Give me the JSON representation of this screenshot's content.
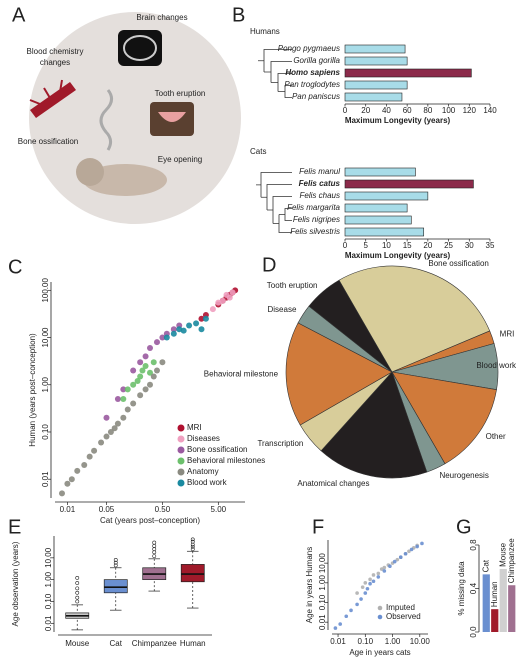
{
  "panels": [
    "A",
    "B",
    "C",
    "D",
    "E",
    "F",
    "G"
  ],
  "panel_a": {
    "brain": "Brain changes",
    "blood": [
      "Blood chemistry",
      "changes"
    ],
    "tooth": "Tooth eruption",
    "bone": "Bone ossification",
    "eye": "Eye opening"
  },
  "chart_data": [
    {
      "type": "bar",
      "orientation": "horizontal",
      "title": "Humans",
      "xlabel": "Maximum Longevity (years)",
      "categories": [
        "Pongo pygmaeus",
        "Gorilla gorilla",
        "Homo sapiens",
        "Pan troglodytes",
        "Pan paniscus"
      ],
      "values": [
        58,
        60,
        122,
        60,
        55
      ],
      "color": "#a8dce8",
      "highlight_index": 2,
      "highlight_color": "#8b2a4a",
      "xlim": [
        0,
        140
      ],
      "xticks": [
        0,
        20,
        40,
        60,
        80,
        100,
        120,
        140
      ]
    },
    {
      "type": "bar",
      "orientation": "horizontal",
      "title": "Cats",
      "xlabel": "Maximum Longevity (years)",
      "categories": [
        "Felis manul",
        "Felis catus",
        "Felis chaus",
        "Felis margarita",
        "Felis nigripes",
        "Felis silvestris"
      ],
      "values": [
        17,
        31,
        20,
        15,
        16,
        19
      ],
      "color": "#a8dce8",
      "highlight_index": 1,
      "highlight_color": "#8b2a4a",
      "xlim": [
        0,
        35
      ],
      "xticks": [
        0,
        5,
        10,
        15,
        20,
        25,
        30,
        35
      ]
    },
    {
      "type": "scatter",
      "xlabel": "Cat (years post–conception)",
      "ylabel": "Human (years post–conception)",
      "log_x": true,
      "log_y": true,
      "legend": "lower right",
      "xlim": [
        0.006,
        15
      ],
      "ylim": [
        0.004,
        150
      ],
      "xticks": [
        0.01,
        0.05,
        {
          "value": 0.5,
          "label": "0.50"
        },
        {
          "value": 5,
          "label": "5.00"
        }
      ],
      "yticks": [
        0.01,
        {
          "value": 0.1,
          "label": "0.10"
        },
        {
          "value": 1,
          "label": "1.00"
        },
        {
          "value": 10,
          "label": "10.00"
        },
        {
          "value": 100,
          "label": "100.00"
        }
      ],
      "series": [
        {
          "name": "MRI",
          "color": "#b01030",
          "x": [
            2.5,
            3,
            5,
            6,
            7,
            8,
            9,
            10
          ],
          "y": [
            25,
            30,
            50,
            60,
            70,
            80,
            90,
            100
          ]
        },
        {
          "name": "Diseases",
          "color": "#f0a0c0",
          "x": [
            4,
            5,
            6,
            7,
            8,
            9
          ],
          "y": [
            40,
            55,
            60,
            80,
            70,
            90
          ]
        },
        {
          "name": "Bone ossification",
          "color": "#9a5aa0",
          "x": [
            0.05,
            0.08,
            0.1,
            0.15,
            0.2,
            0.25,
            0.3,
            0.4,
            0.5,
            0.6,
            0.8,
            1
          ],
          "y": [
            0.2,
            0.5,
            0.8,
            2,
            3,
            4,
            6,
            8,
            10,
            12,
            15,
            18
          ]
        },
        {
          "name": "Behavioral milestones",
          "color": "#6cc06c",
          "x": [
            0.1,
            0.12,
            0.15,
            0.18,
            0.2,
            0.22,
            0.25,
            0.3,
            0.35
          ],
          "y": [
            0.5,
            0.8,
            1,
            1.2,
            1.5,
            2,
            2.5,
            1.8,
            3
          ]
        },
        {
          "name": "Anatomy",
          "color": "#8a8a80",
          "x": [
            0.008,
            0.01,
            0.012,
            0.015,
            0.02,
            0.025,
            0.03,
            0.04,
            0.05,
            0.06,
            0.07,
            0.08,
            0.1,
            0.12,
            0.15,
            0.2,
            0.25,
            0.3,
            0.35,
            0.4,
            0.5
          ],
          "y": [
            0.005,
            0.008,
            0.01,
            0.015,
            0.02,
            0.03,
            0.04,
            0.06,
            0.08,
            0.1,
            0.12,
            0.15,
            0.2,
            0.3,
            0.4,
            0.6,
            0.8,
            1,
            1.5,
            2,
            3
          ]
        },
        {
          "name": "Blood work",
          "color": "#1a8aa0",
          "x": [
            0.6,
            0.8,
            1,
            1.2,
            1.5,
            2,
            2.5,
            3
          ],
          "y": [
            10,
            12,
            15,
            14,
            18,
            20,
            15,
            25
          ]
        }
      ]
    },
    {
      "type": "pie",
      "categories": [
        "Bone ossification",
        "MRI",
        "Blood work",
        "Other",
        "Neurogenesis",
        "Anatomical changes",
        "Transcription",
        "Behavioral milestone",
        "Disease",
        "Tooth eruption"
      ],
      "values": [
        27,
        2,
        7,
        14,
        3,
        17,
        5,
        16,
        3,
        6
      ],
      "colors": [
        "#d8cd9a",
        "#d07a3a",
        "#7f9690",
        "#d07a3a",
        "#7f9690",
        "#231f20",
        "#d8cd9a",
        "#d07a3a",
        "#7f9690",
        "#231f20"
      ]
    },
    {
      "type": "box",
      "ylabel": "Age observation (years)",
      "log_y": true,
      "ylim": [
        0.004,
        100
      ],
      "yticks": [
        0.01,
        {
          "value": 0.1,
          "label": "0.10"
        },
        {
          "value": 1,
          "label": "1.00"
        },
        {
          "value": 10,
          "label": "10.00"
        }
      ],
      "categories": [
        "Mouse",
        "Cat",
        "Chimpanzee",
        "Human"
      ],
      "colors": [
        "#c8c8c8",
        "#6a8fd0",
        "#a07090",
        "#a01a2a"
      ],
      "boxes": [
        {
          "whisker_low": 0.005,
          "q1": 0.017,
          "median": 0.022,
          "q3": 0.03,
          "whisker_high": 0.07,
          "outliers": [
            0.1,
            0.15,
            0.25,
            0.4,
            0.7,
            1.2
          ]
        },
        {
          "whisker_low": 0.04,
          "q1": 0.25,
          "median": 0.45,
          "q3": 1,
          "whisker_high": 3.5,
          "outliers": [
            4.5,
            6,
            8
          ]
        },
        {
          "whisker_low": 0.3,
          "q1": 1,
          "median": 1.8,
          "q3": 3.5,
          "whisker_high": 9,
          "outliers": [
            12,
            18,
            25,
            35,
            50
          ]
        },
        {
          "whisker_low": 0.05,
          "q1": 0.8,
          "median": 1.8,
          "q3": 5,
          "whisker_high": 20,
          "outliers": [
            25,
            32,
            40,
            55,
            70
          ]
        }
      ]
    },
    {
      "type": "scatter",
      "xlabel": "Age in years cats",
      "ylabel": "Age in years Humans",
      "log_x": true,
      "log_y": true,
      "legend": "lower right",
      "xlim": [
        0.006,
        20
      ],
      "ylim": [
        0.004,
        150
      ],
      "xticks": [
        0.01,
        {
          "value": 0.1,
          "label": "0.10"
        },
        {
          "value": 1,
          "label": "1.00"
        },
        {
          "value": 10,
          "label": "10.00"
        }
      ],
      "yticks": [
        0.01,
        {
          "value": 0.1,
          "label": "0.10"
        },
        {
          "value": 1,
          "label": "1.00"
        },
        {
          "value": 10,
          "label": "10.00"
        }
      ],
      "series": [
        {
          "name": "Imputed",
          "color": "#b0b0b0",
          "x": [
            0.05,
            0.08,
            0.1,
            0.15,
            0.2,
            0.3,
            0.4,
            0.5,
            0.7,
            1,
            1.5,
            2,
            3,
            4,
            6,
            8
          ],
          "y": [
            0.3,
            0.6,
            1,
            1.5,
            2.5,
            3,
            5,
            6,
            8,
            10,
            15,
            20,
            30,
            40,
            60,
            80
          ]
        },
        {
          "name": "Observed",
          "color": "#6a8fd0",
          "x": [
            0.008,
            0.012,
            0.02,
            0.03,
            0.05,
            0.07,
            0.1,
            0.12,
            0.15,
            0.2,
            0.3,
            0.5,
            0.8,
            1.2,
            2,
            3,
            5,
            8,
            12
          ],
          "y": [
            0.005,
            0.008,
            0.02,
            0.04,
            0.08,
            0.15,
            0.3,
            0.5,
            0.9,
            1.2,
            2,
            4,
            7,
            12,
            20,
            30,
            50,
            70,
            100
          ]
        }
      ]
    },
    {
      "type": "bar",
      "orientation": "vertical",
      "ylabel": "% missing data",
      "categories": [
        "Cat",
        "Human",
        "Mouse",
        "Chimpanzee"
      ],
      "values": [
        0.53,
        0.21,
        0.58,
        0.43
      ],
      "colors": [
        "#6a8fd0",
        "#a01a2a",
        "#d0d0d0",
        "#a07090"
      ],
      "ylim": [
        0,
        0.8
      ],
      "yticks": [
        {
          "value": 0,
          "label": "0.0"
        },
        0.4,
        0.8
      ]
    }
  ]
}
